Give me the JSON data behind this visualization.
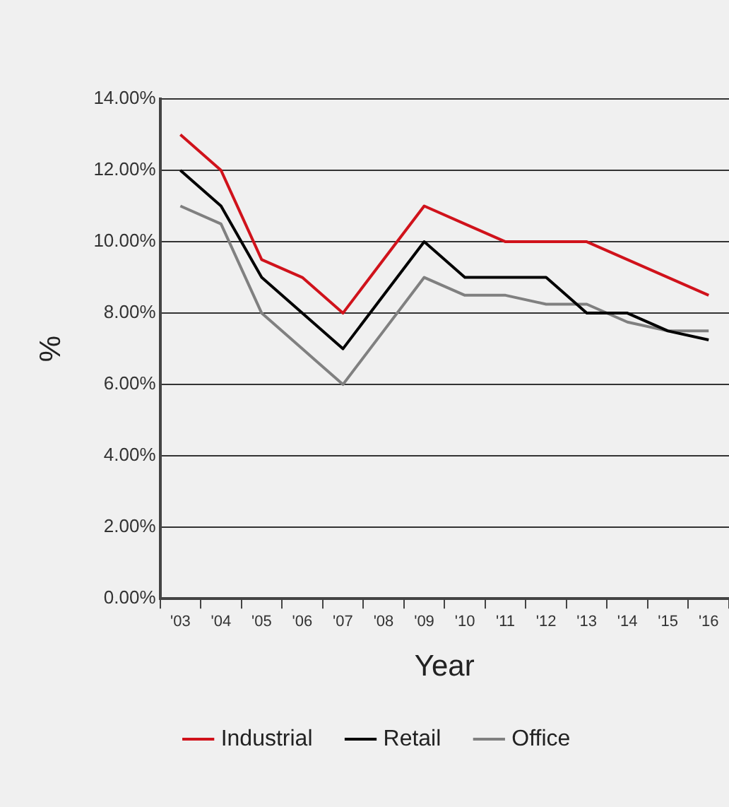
{
  "chart_data": {
    "type": "line",
    "xlabel": "Year",
    "ylabel": "%",
    "categories": [
      "'03",
      "'04",
      "'05",
      "'06",
      "'07",
      "'08",
      "'09",
      "'10",
      "'11",
      "'12",
      "'13",
      "'14",
      "'15",
      "'16"
    ],
    "series": [
      {
        "name": "Industrial",
        "color": "#d0121b",
        "values": [
          13,
          12,
          9.5,
          9,
          8,
          9.5,
          11,
          10.5,
          10,
          10,
          10,
          9.5,
          9,
          8.5
        ]
      },
      {
        "name": "Retail",
        "color": "#000000",
        "values": [
          12,
          11,
          9,
          8,
          7,
          8.5,
          10,
          9,
          9,
          9,
          8,
          8,
          7.5,
          7.25
        ]
      },
      {
        "name": "Office",
        "color": "#808080",
        "values": [
          11,
          10.5,
          8,
          7,
          6,
          7.5,
          9,
          8.5,
          8.5,
          8.25,
          8.25,
          7.75,
          7.5,
          7.5
        ]
      }
    ],
    "ylim": [
      0,
      14
    ],
    "yticks": [
      {
        "value": 0,
        "label": "0.00%"
      },
      {
        "value": 2,
        "label": "2.00%"
      },
      {
        "value": 4,
        "label": "4.00%"
      },
      {
        "value": 6,
        "label": "6.00%"
      },
      {
        "value": 8,
        "label": "8.00%"
      },
      {
        "value": 10,
        "label": "10.00%"
      },
      {
        "value": 12,
        "label": "12.00%"
      },
      {
        "value": 14,
        "label": "14.00%"
      }
    ],
    "grid": "y",
    "legend": "bottom",
    "marker": "none",
    "line_style": "solid"
  }
}
